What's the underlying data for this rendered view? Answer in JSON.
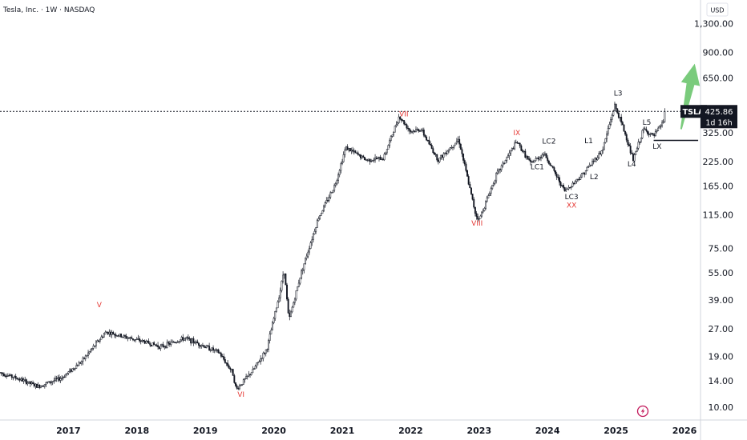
{
  "header": {
    "title": "Tesla, Inc. · 1W · NASDAQ"
  },
  "currency_button": "USD",
  "price_tag": {
    "symbol": "TSLA",
    "price": "425.86",
    "countdown": "1d 16h"
  },
  "colors": {
    "candle": "#131722",
    "price_line": "#131722",
    "price_tag_bg": "#131722",
    "red_label": "#e53935",
    "arrow": "#6cc56e",
    "lightning": "#c2185b"
  },
  "icons": {
    "forecast_arrow": "up-arrow-icon",
    "lightning": "lightning-icon"
  },
  "chart_data": {
    "type": "candlestick",
    "scale": "log",
    "ylim": [
      8.5,
      1750
    ],
    "y_ticks": [
      "1,300.00",
      "900.00",
      "650.00",
      "325.00",
      "225.00",
      "165.00",
      "115.00",
      "75.00",
      "55.00",
      "39.00",
      "27.00",
      "19.00",
      "14.00",
      "10.00"
    ],
    "x_ticks": [
      "2017",
      "2018",
      "2019",
      "2020",
      "2021",
      "2022",
      "2023",
      "2024",
      "2025",
      "2026"
    ],
    "last_price": 425.86,
    "path_points": [
      {
        "t": 2016.0,
        "p": 15.5
      },
      {
        "t": 2016.3,
        "p": 14.2
      },
      {
        "t": 2016.55,
        "p": 13.0
      },
      {
        "t": 2016.9,
        "p": 14.5
      },
      {
        "t": 2017.2,
        "p": 18.0
      },
      {
        "t": 2017.45,
        "p": 23.5
      },
      {
        "t": 2017.55,
        "p": 26.0
      },
      {
        "t": 2017.8,
        "p": 24.5
      },
      {
        "t": 2018.1,
        "p": 23.0
      },
      {
        "t": 2018.35,
        "p": 21.5
      },
      {
        "t": 2018.7,
        "p": 24.0
      },
      {
        "t": 2018.95,
        "p": 22.0
      },
      {
        "t": 2019.2,
        "p": 20.0
      },
      {
        "t": 2019.4,
        "p": 15.5
      },
      {
        "t": 2019.45,
        "p": 12.5
      },
      {
        "t": 2019.7,
        "p": 16.0
      },
      {
        "t": 2019.9,
        "p": 21.0
      },
      {
        "t": 2020.1,
        "p": 45.0
      },
      {
        "t": 2020.15,
        "p": 58.0
      },
      {
        "t": 2020.22,
        "p": 30.0
      },
      {
        "t": 2020.4,
        "p": 55.0
      },
      {
        "t": 2020.65,
        "p": 110.0
      },
      {
        "t": 2020.9,
        "p": 170.0
      },
      {
        "t": 2021.05,
        "p": 270.0
      },
      {
        "t": 2021.35,
        "p": 230.0
      },
      {
        "t": 2021.6,
        "p": 235.0
      },
      {
        "t": 2021.83,
        "p": 400.0
      },
      {
        "t": 2022.0,
        "p": 330.0
      },
      {
        "t": 2022.15,
        "p": 340.0
      },
      {
        "t": 2022.4,
        "p": 230.0
      },
      {
        "t": 2022.7,
        "p": 300.0
      },
      {
        "t": 2022.95,
        "p": 115.0
      },
      {
        "t": 2023.0,
        "p": 108.0
      },
      {
        "t": 2023.25,
        "p": 190.0
      },
      {
        "t": 2023.55,
        "p": 290.0
      },
      {
        "t": 2023.75,
        "p": 220.0
      },
      {
        "t": 2023.95,
        "p": 250.0
      },
      {
        "t": 2024.25,
        "p": 155.0
      },
      {
        "t": 2024.5,
        "p": 190.0
      },
      {
        "t": 2024.8,
        "p": 260.0
      },
      {
        "t": 2024.98,
        "p": 460.0
      },
      {
        "t": 2025.1,
        "p": 350.0
      },
      {
        "t": 2025.25,
        "p": 230.0
      },
      {
        "t": 2025.4,
        "p": 340.0
      },
      {
        "t": 2025.55,
        "p": 310.0
      },
      {
        "t": 2025.7,
        "p": 380.0
      },
      {
        "t": 2025.72,
        "p": 425.86
      }
    ],
    "wave_labels": [
      {
        "text": "V",
        "t": 2017.45,
        "p": 35.5,
        "color": "red"
      },
      {
        "text": "VI",
        "t": 2019.52,
        "p": 11.4,
        "color": "red"
      },
      {
        "text": "VII",
        "t": 2021.9,
        "p": 400.0,
        "color": "red"
      },
      {
        "text": "VIII",
        "t": 2022.97,
        "p": 100.0,
        "color": "red"
      },
      {
        "text": "IX",
        "t": 2023.55,
        "p": 315.0,
        "color": "red"
      },
      {
        "text": "LC1",
        "t": 2023.85,
        "p": 205.0,
        "color": "black"
      },
      {
        "text": "LC2",
        "t": 2024.02,
        "p": 283.0,
        "color": "black"
      },
      {
        "text": "LC3",
        "t": 2024.35,
        "p": 140.0,
        "color": "black"
      },
      {
        "text": "XX",
        "t": 2024.35,
        "p": 126.0,
        "color": "red"
      },
      {
        "text": "L1",
        "t": 2024.6,
        "p": 285.0,
        "color": "black"
      },
      {
        "text": "L2",
        "t": 2024.68,
        "p": 180.0,
        "color": "black"
      },
      {
        "text": "L3",
        "t": 2025.03,
        "p": 520.0,
        "color": "black"
      },
      {
        "text": "L4",
        "t": 2025.23,
        "p": 212.0,
        "color": "black"
      },
      {
        "text": "L5",
        "t": 2025.45,
        "p": 360.0,
        "color": "black"
      },
      {
        "text": "LX",
        "t": 2025.6,
        "p": 265.0,
        "color": "black"
      }
    ],
    "support_line": {
      "t_start": 2025.55,
      "t_end": 2026.2,
      "p": 295.0
    },
    "forecast_arrow": {
      "t_start": 2025.95,
      "p_start": 340.0,
      "t_end": 2026.15,
      "p_end": 780.0
    }
  }
}
